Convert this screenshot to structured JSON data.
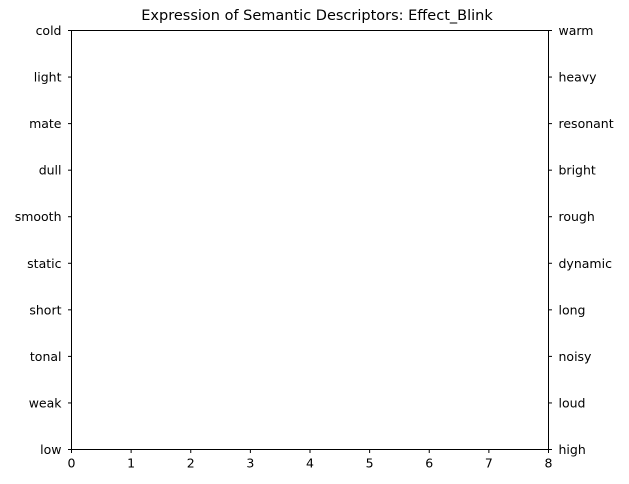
{
  "chart_data": {
    "type": "scatter",
    "title": "Expression of Semantic Descriptors: Effect_Blink",
    "xlabel": "",
    "ylabel": "",
    "xlim": [
      0,
      8
    ],
    "x_ticks": [
      "0",
      "1",
      "2",
      "3",
      "4",
      "5",
      "6",
      "7",
      "8"
    ],
    "left_descriptors": [
      "cold",
      "light",
      "mate",
      "dull",
      "smooth",
      "static",
      "short",
      "tonal",
      "weak",
      "low"
    ],
    "right_descriptors": [
      "warm",
      "heavy",
      "resonant",
      "bright",
      "rough",
      "dynamic",
      "long",
      "noisy",
      "loud",
      "high"
    ],
    "series": [],
    "grid": false,
    "legend": "none"
  }
}
